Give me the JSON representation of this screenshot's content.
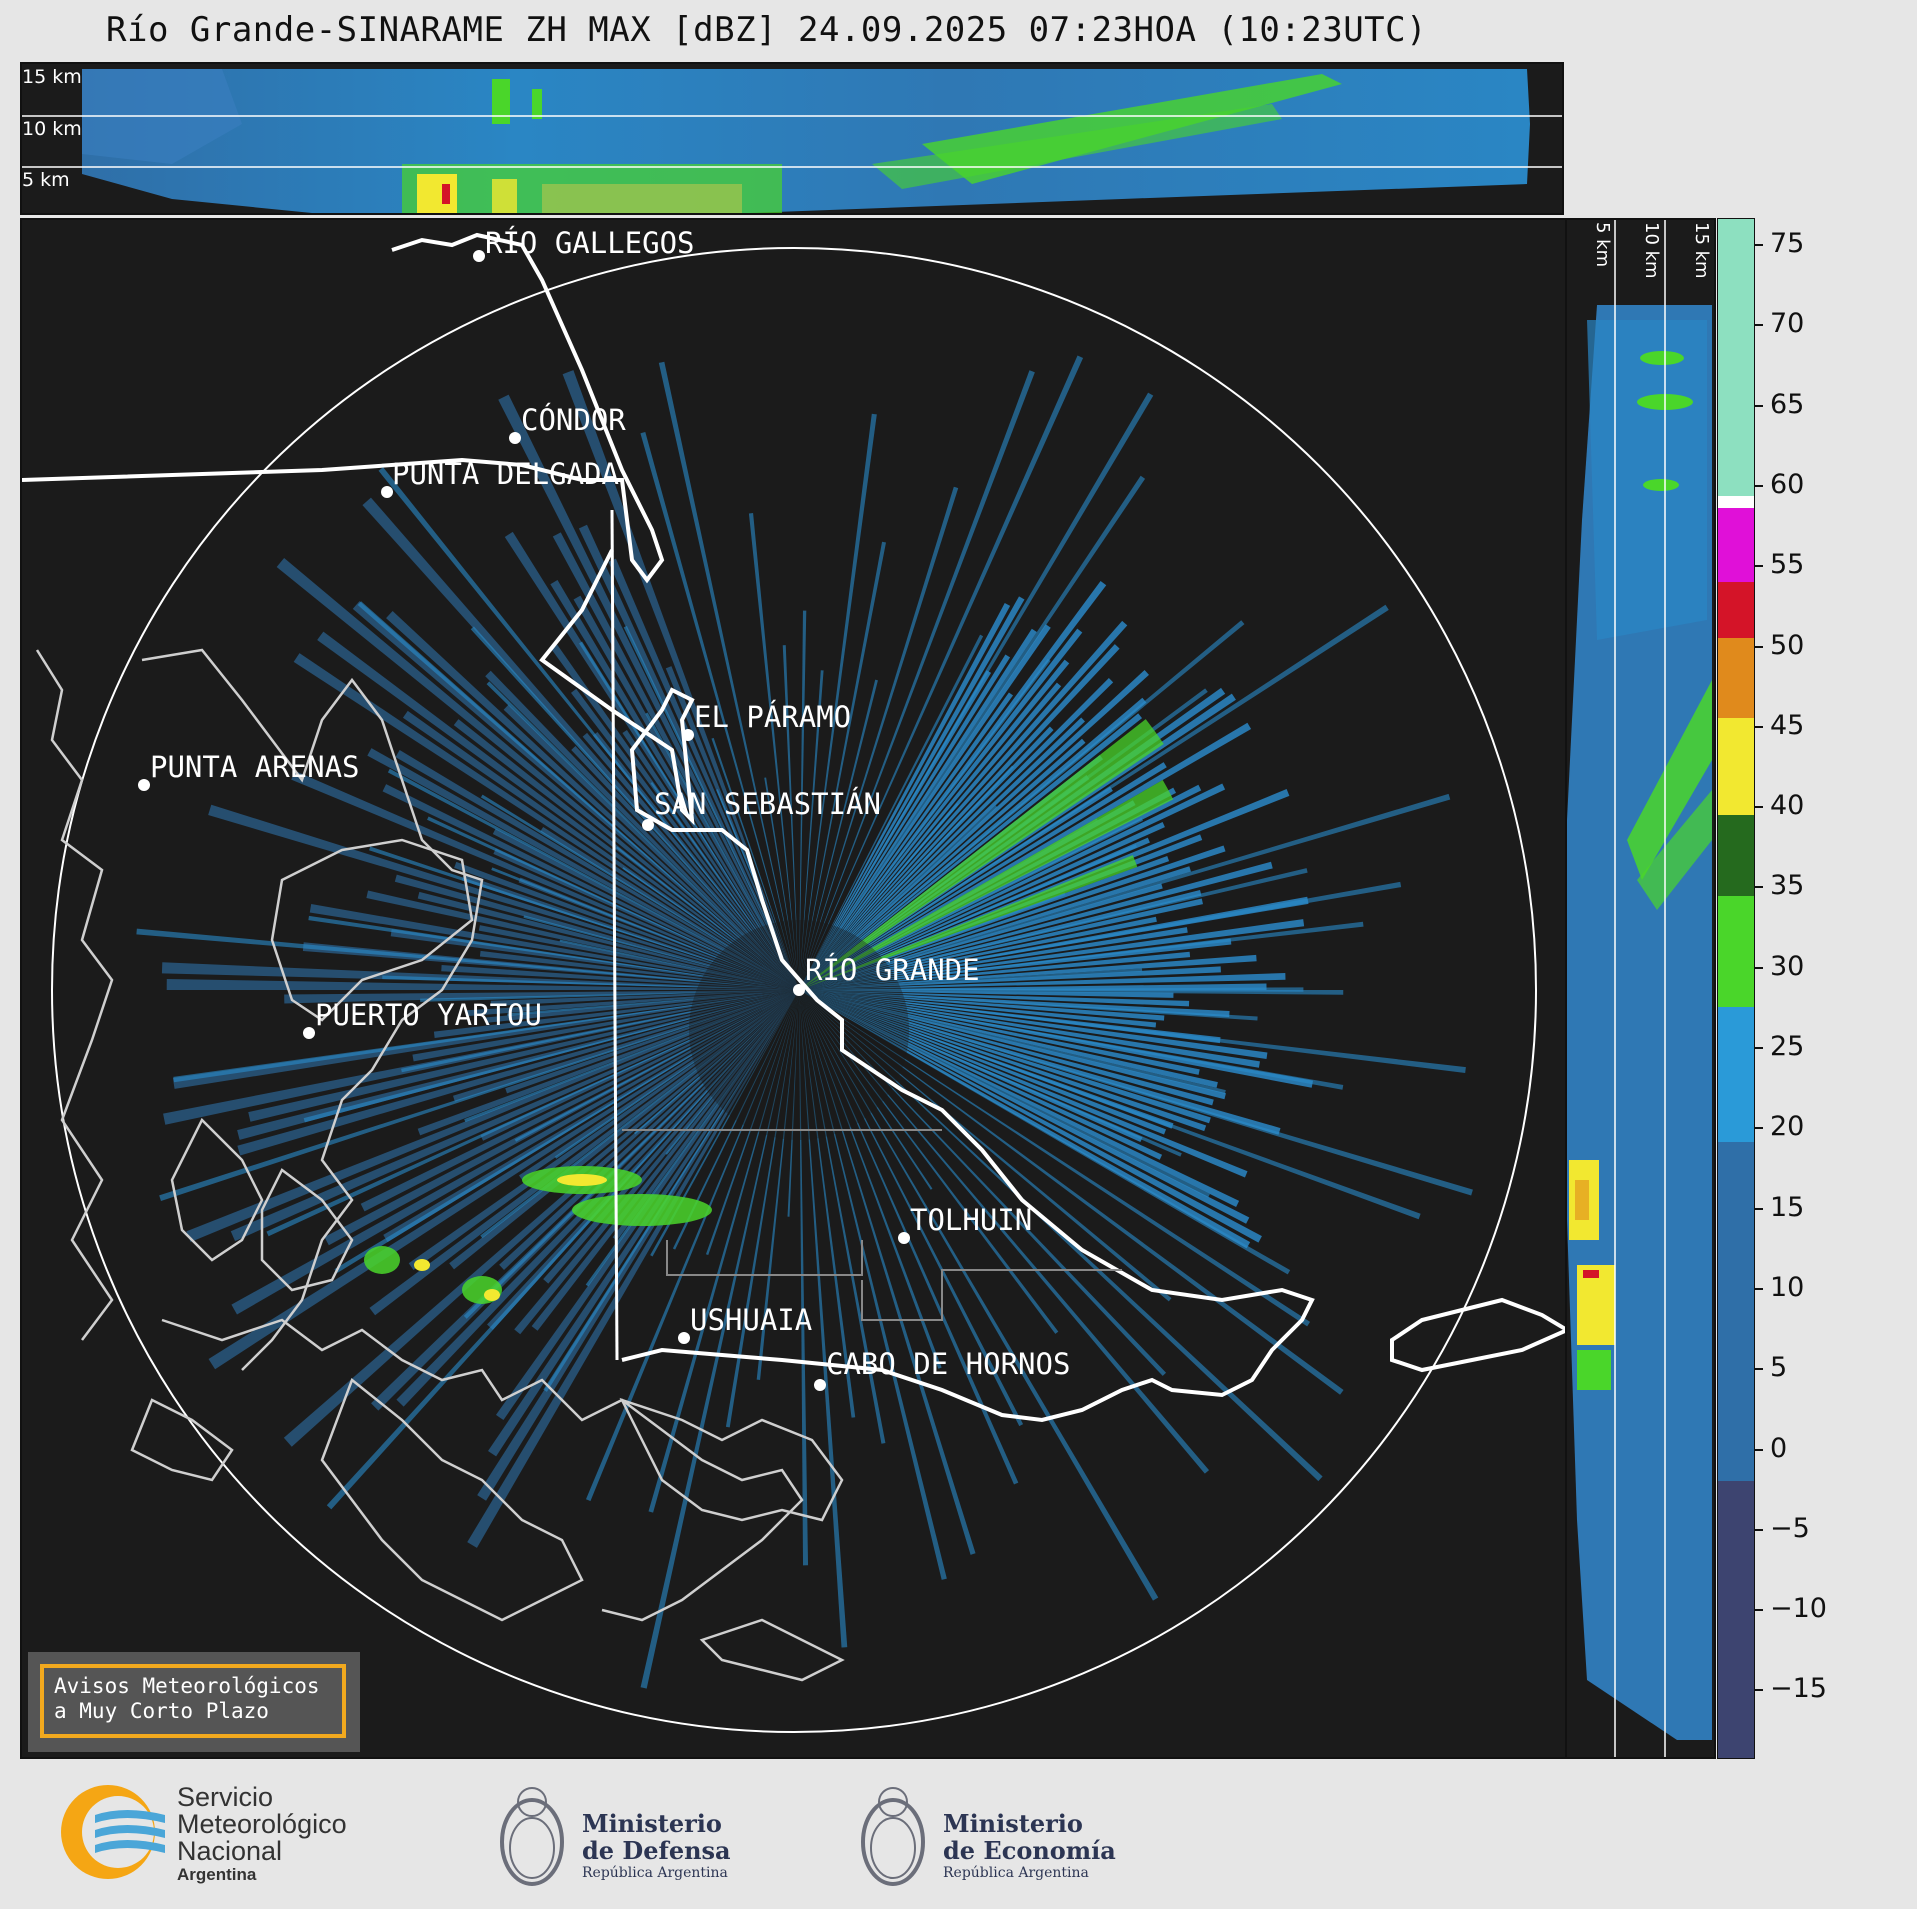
{
  "header": {
    "title": "Río Grande-SINARAME ZH MAX [dBZ] 24.09.2025 07:23HOA (10:23UTC)"
  },
  "top_panel": {
    "altitudes": [
      "15 km",
      "10 km",
      "5 km"
    ]
  },
  "side_panel": {
    "altitudes": [
      "5 km",
      "10 km",
      "15 km"
    ]
  },
  "map": {
    "cities": [
      {
        "name": "RÍO GALLEGOS"
      },
      {
        "name": "CÓNDOR"
      },
      {
        "name": "PUNTA DELGADA"
      },
      {
        "name": "EL PÁRAMO"
      },
      {
        "name": "PUNTA ARENAS"
      },
      {
        "name": "SAN SEBASTIÁN"
      },
      {
        "name": "RÍO GRANDE"
      },
      {
        "name": "PUERTO YARTOU"
      },
      {
        "name": "TOLHUIN"
      },
      {
        "name": "USHUAIA"
      },
      {
        "name": "CABO DE HORNOS"
      }
    ]
  },
  "colorbar": {
    "unit": "dBZ",
    "ticks": [
      "75",
      "70",
      "65",
      "60",
      "55",
      "50",
      "45",
      "40",
      "35",
      "30",
      "25",
      "20",
      "15",
      "10",
      "5",
      "0",
      "−5",
      "−10",
      "−15"
    ],
    "colors": {
      "range_neg": "#3d4470",
      "range_low": "#2f6fa8",
      "range_mid": "#2a9ad8",
      "range_green": "#4ad62a",
      "range_darkgreen": "#256a1e",
      "range_yellow": "#f2e830",
      "range_orange": "#e08a1c",
      "range_red": "#d41428",
      "range_magenta": "#e010d8",
      "range_white": "#ffffff",
      "range_mint": "#8de0c0"
    }
  },
  "warning": {
    "line1": "Avisos Meteorológicos",
    "line2": "a Muy Corto Plazo"
  },
  "logos": {
    "smn": {
      "line1": "Servicio",
      "line2": "Meteorológico",
      "line3": "Nacional",
      "line4": "Argentina"
    },
    "defensa": {
      "line1": "Ministerio",
      "line2": "de Defensa",
      "line3": "República Argentina"
    },
    "economia": {
      "line1": "Ministerio",
      "line2": "de Economía",
      "line3": "República Argentina"
    }
  }
}
